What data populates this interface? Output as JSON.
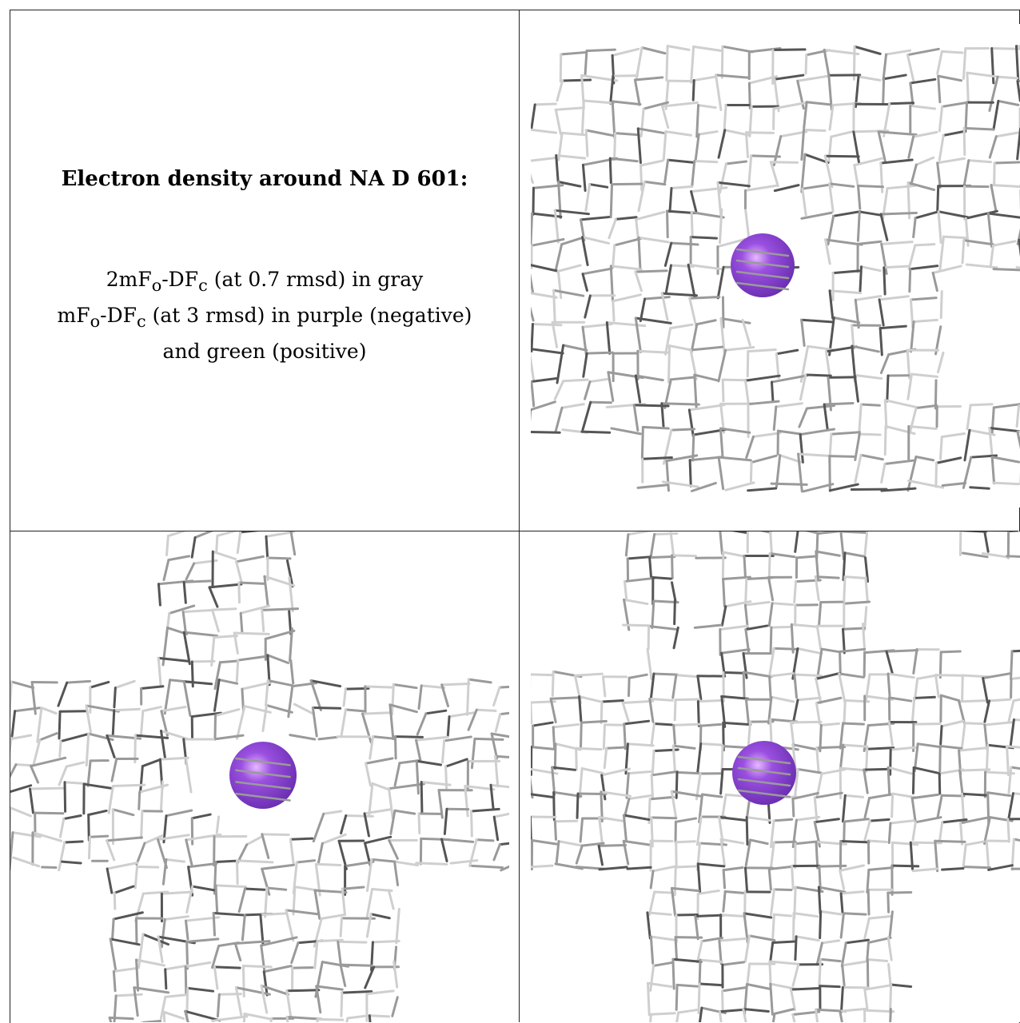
{
  "caption": {
    "title": "Electron density around NA D 601:",
    "line1_pre": "2mF",
    "line1_sub1": "o",
    "line1_mid": "-DF",
    "line1_sub2": "c",
    "line1_post": " (at 0.7 rmsd) in gray",
    "line2_pre": "mF",
    "line2_sub1": "o",
    "line2_mid": "-DF",
    "line2_sub2": "c",
    "line2_post": " (at 3 rmsd) in purple (negative)",
    "line3": "and green (positive)"
  },
  "colors": {
    "mesh_dark": "#555555",
    "mesh_mid": "#9a9a9a",
    "mesh_light": "#cfcfcf",
    "sphere_main": "#9a4fe0",
    "sphere_highlight": "#e6b8ff",
    "sphere_shadow": "#6a2fb0"
  },
  "views": [
    {
      "name": "top-right-view",
      "sphere": "sodium-ion"
    },
    {
      "name": "bottom-left-view",
      "sphere": "sodium-ion"
    },
    {
      "name": "bottom-right-view",
      "sphere": "sodium-ion"
    }
  ]
}
